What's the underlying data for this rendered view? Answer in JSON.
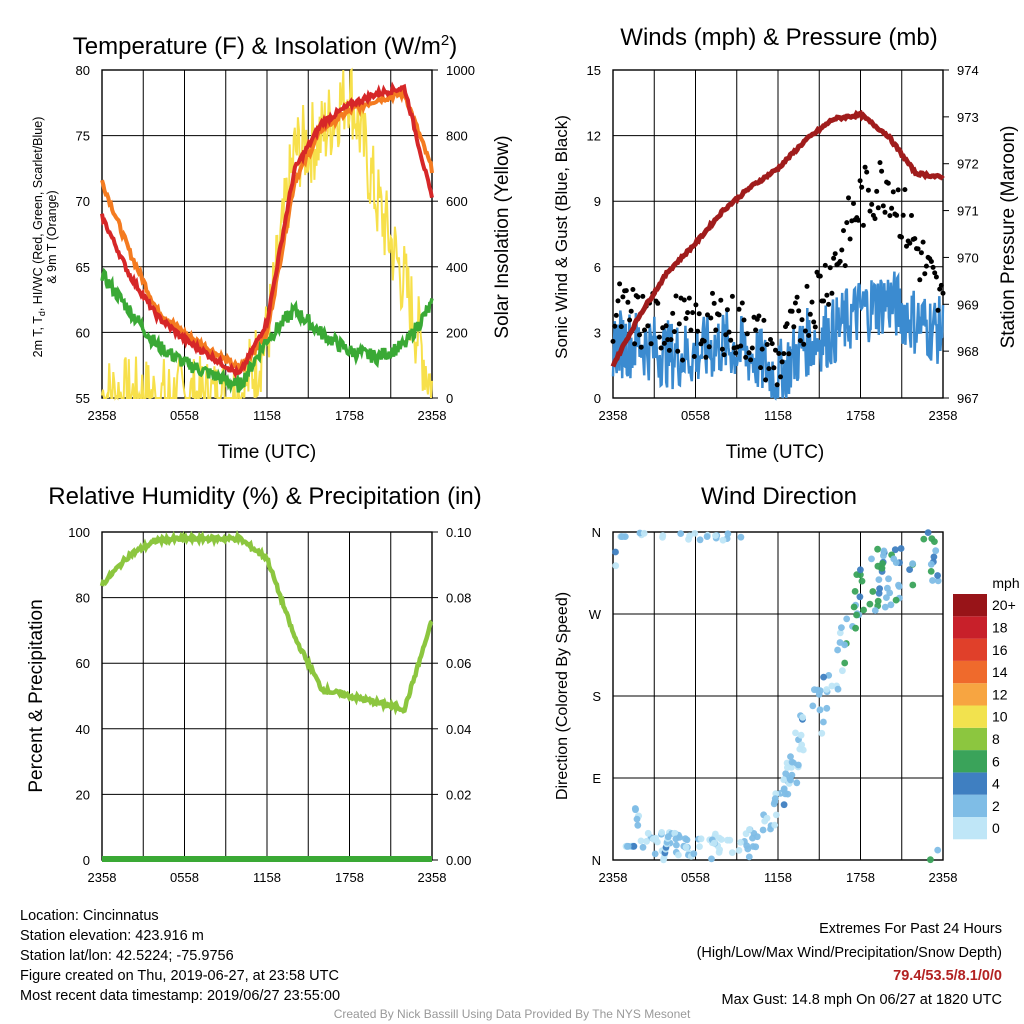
{
  "panels": {
    "temperature": {
      "title": "Temperature (F) & Insolation (W/m",
      "title_sup": "2",
      "title_close": ")",
      "ylabel_left": [
        "2m T, T",
        "d",
        ", HI/WC (Red, Green, Scarlet/Blue)",
        "& 9m T (Orange)"
      ],
      "ylabel_right": "Solar Insolation (Yellow)",
      "xlabel": "Time (UTC)"
    },
    "winds": {
      "title": "Winds (mph) & Pressure (mb)",
      "ylabel_left": "Sonic Wind & Gust (Blue, Black)",
      "ylabel_right": "Station Pressure (Maroon)",
      "xlabel": "Time (UTC)"
    },
    "humidity": {
      "title": "Relative Humidity (%) & Precipitation (in)",
      "ylabel_left": "Percent & Precipitation"
    },
    "direction": {
      "title": "Wind Direction",
      "ylabel_left": "Direction (Colored By Speed)",
      "colorbar_title": "mph"
    }
  },
  "info": {
    "location": "Location: Cincinnatus",
    "elevation": "Station elevation: 423.916 m",
    "latlon": "Station lat/lon: 42.5224; -75.9756",
    "created": "Figure created on Thu, 2019-06-27, at 23:58 UTC",
    "recent": "Most recent data timestamp: 2019/06/27 23:55:00"
  },
  "extremes": {
    "heading": "Extremes For Past 24 Hours",
    "subheading": "(High/Low/Max Wind/Precipitation/Snow Depth)",
    "values": "79.4/53.5/8.1/0/0",
    "max_gust": "Max Gust: 14.8 mph On 06/27 at 1820 UTC"
  },
  "credit": "Created By Nick Bassill Using Data Provided By The NYS Mesonet",
  "chart_data": [
    {
      "type": "line",
      "x": [
        "2358",
        "0158",
        "0358",
        "0558",
        "0758",
        "0958",
        "1158",
        "1358",
        "1558",
        "1758",
        "1958",
        "2158",
        "2358"
      ],
      "xticks": [
        "2358",
        "0558",
        "1158",
        "1758",
        "2358"
      ],
      "ylim": [
        52.5,
        80.5
      ],
      "yticks": [
        55,
        60,
        65,
        70,
        75,
        80
      ],
      "ylim_right": [
        0,
        1000
      ],
      "yticks_right": [
        0,
        200,
        400,
        600,
        800,
        1000
      ],
      "series": [
        {
          "color": "#d62728",
          "values": [
            68,
            63,
            59.5,
            57.5,
            56,
            54.5,
            59,
            72,
            76,
            77.5,
            78.5,
            79,
            69.5
          ]
        },
        {
          "color": "#f47b20",
          "values": [
            71,
            65,
            60,
            58,
            56.5,
            55,
            58,
            71,
            75.5,
            77,
            78,
            78.5,
            72
          ]
        },
        {
          "color": "#3aa935",
          "values": [
            63,
            60,
            57,
            55.5,
            54.5,
            53.5,
            57.5,
            60,
            58,
            56.5,
            56,
            57,
            60.5
          ]
        },
        {
          "color": "#f7e04b",
          "axis": "right",
          "values": [
            10,
            0,
            0,
            0,
            0,
            5,
            180,
            750,
            800,
            950,
            600,
            350,
            30
          ]
        }
      ]
    },
    {
      "type": "line",
      "x": [
        "2358",
        "0158",
        "0358",
        "0558",
        "0758",
        "0958",
        "1158",
        "1358",
        "1558",
        "1758",
        "1958",
        "2158",
        "2358"
      ],
      "xticks": [
        "2358",
        "0558",
        "1158",
        "1758",
        "2358"
      ],
      "ylim": [
        0,
        15
      ],
      "yticks": [
        0,
        3,
        6,
        9,
        12,
        15
      ],
      "ylim_right": [
        967,
        974
      ],
      "yticks_right": [
        967,
        968,
        969,
        970,
        971,
        972,
        973,
        974
      ],
      "series": [
        {
          "color": "#3b8bd0",
          "values": [
            2.5,
            2.5,
            2,
            2,
            2.5,
            2,
            1,
            2.5,
            3,
            4,
            4.5,
            3.5,
            3
          ]
        },
        {
          "color": "#000000",
          "type": "scatter",
          "values": [
            4,
            3.5,
            3.5,
            3,
            3.5,
            3,
            1.5,
            4,
            6,
            9,
            10,
            7,
            4
          ]
        },
        {
          "color": "#a01c1c",
          "axis": "right",
          "values": [
            967.7,
            968.8,
            969.7,
            970.3,
            971.0,
            971.5,
            971.9,
            972.5,
            972.95,
            973.05,
            972.6,
            971.8,
            971.7
          ]
        }
      ]
    },
    {
      "type": "line",
      "x": [
        "2358",
        "0158",
        "0358",
        "0558",
        "0758",
        "0958",
        "1158",
        "1358",
        "1558",
        "1758",
        "1958",
        "2158",
        "2358"
      ],
      "xticks": [
        "2358",
        "0558",
        "1158",
        "1758",
        "2358"
      ],
      "ylim": [
        0,
        100
      ],
      "yticks": [
        0,
        20,
        40,
        60,
        80,
        100
      ],
      "ylim_right": [
        0,
        0.1
      ],
      "yticks_right": [
        "0.00",
        "0.02",
        "0.04",
        "0.06",
        "0.08",
        "0.10"
      ],
      "series": [
        {
          "color": "#8cc63f",
          "values": [
            84,
            93,
            97.5,
            98,
            98,
            98,
            92,
            68,
            52,
            50,
            48,
            46,
            73
          ]
        },
        {
          "color": "#3aa935",
          "axis": "right",
          "values": [
            0,
            0,
            0,
            0,
            0,
            0,
            0,
            0,
            0,
            0,
            0,
            0,
            0
          ]
        }
      ]
    },
    {
      "type": "scatter",
      "xticks": [
        "2358",
        "0558",
        "1158",
        "1758",
        "2358"
      ],
      "yticks": [
        "N",
        "E",
        "S",
        "W",
        "N"
      ],
      "ylim": [
        0,
        360
      ],
      "x": [
        "2358",
        "0158",
        "0358",
        "0558",
        "0758",
        "0958",
        "1158",
        "1358",
        "1558",
        "1758",
        "1958",
        "2158",
        "2358"
      ],
      "values": [
        355,
        10,
        15,
        10,
        10,
        15,
        60,
        140,
        190,
        300,
        310,
        320,
        345
      ],
      "colorbar": {
        "labels": [
          "0",
          "2",
          "4",
          "6",
          "8",
          "10",
          "12",
          "14",
          "16",
          "18",
          "20+"
        ],
        "colors": [
          "#bfe6f7",
          "#7fbde6",
          "#3f7fc1",
          "#3aa35a",
          "#8cc63f",
          "#f2e24e",
          "#f7a541",
          "#ef6a2c",
          "#e0402a",
          "#c8202a",
          "#981418"
        ]
      }
    }
  ]
}
